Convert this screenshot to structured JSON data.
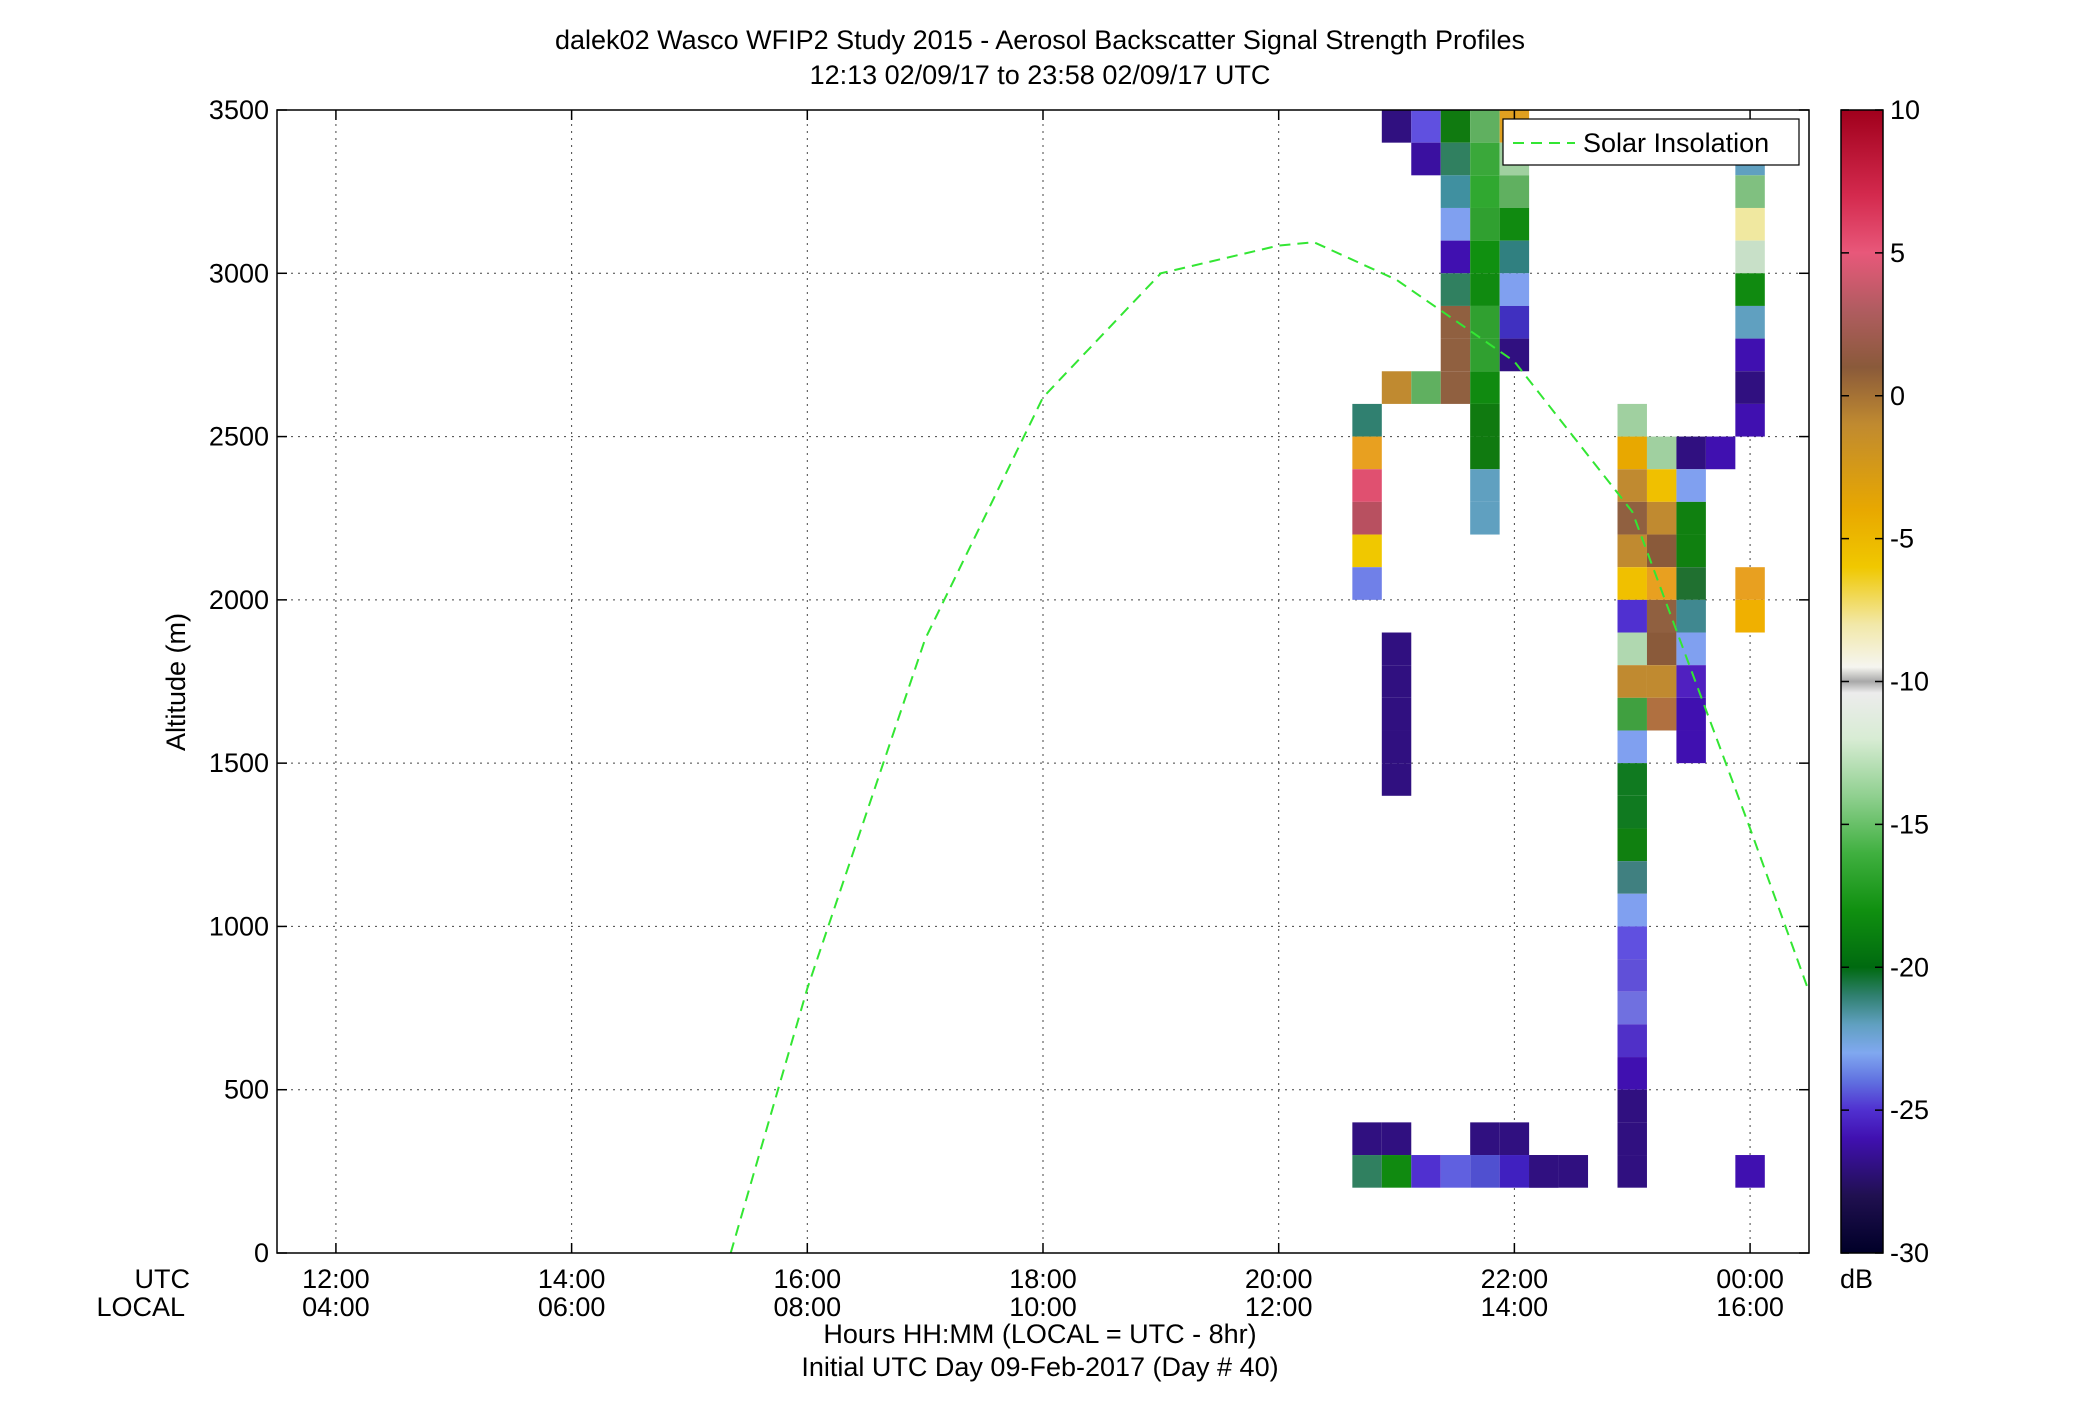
{
  "chart_data": {
    "type": "heatmap",
    "title": "dalek02 Wasco WFIP2 Study 2015 - Aerosol Backscatter Signal Strength Profiles",
    "subtitle": "12:13 02/09/17 to 23:58 02/09/17  UTC",
    "ylabel": "Altitude (m)",
    "xlabel": "Hours HH:MM  (LOCAL = UTC - 8hr)",
    "xlabel2": "Initial UTC Day 09-Feb-2017 (Day # 40)",
    "xaxis_row_labels": [
      "UTC",
      "LOCAL"
    ],
    "xlim_hours": [
      11.5,
      24.5
    ],
    "ylim": [
      0,
      3500
    ],
    "xticks": [
      {
        "hour": 12,
        "utc": "12:00",
        "local": "04:00"
      },
      {
        "hour": 14,
        "utc": "14:00",
        "local": "06:00"
      },
      {
        "hour": 16,
        "utc": "16:00",
        "local": "08:00"
      },
      {
        "hour": 18,
        "utc": "18:00",
        "local": "10:00"
      },
      {
        "hour": 20,
        "utc": "20:00",
        "local": "12:00"
      },
      {
        "hour": 22,
        "utc": "22:00",
        "local": "14:00"
      },
      {
        "hour": 24,
        "utc": "00:00",
        "local": "16:00"
      }
    ],
    "yticks": [
      0,
      500,
      1000,
      1500,
      2000,
      2500,
      3000,
      3500
    ],
    "grid": true,
    "legend": {
      "position": "top-right",
      "entries": [
        {
          "name": "Solar Insolation",
          "style": "dashed",
          "color": "#33e633"
        }
      ]
    },
    "colorbar": {
      "label": "dB",
      "min": -30,
      "max": 10,
      "ticks": [
        10,
        5,
        0,
        -5,
        -10,
        -15,
        -20,
        -25,
        -30
      ],
      "stops": [
        {
          "v": 10,
          "c": "#a0001c"
        },
        {
          "v": 7,
          "c": "#d42a4e"
        },
        {
          "v": 5,
          "c": "#e8587a"
        },
        {
          "v": 3,
          "c": "#b05c60"
        },
        {
          "v": 1,
          "c": "#8a5a3a"
        },
        {
          "v": -1,
          "c": "#c08a30"
        },
        {
          "v": -4,
          "c": "#e8a800"
        },
        {
          "v": -6,
          "c": "#f0c800"
        },
        {
          "v": -8,
          "c": "#f2e8a8"
        },
        {
          "v": -9.5,
          "c": "#f5f5f0"
        },
        {
          "v": -10,
          "c": "#a8a8a8"
        },
        {
          "v": -10.4,
          "c": "#ececec"
        },
        {
          "v": -12,
          "c": "#d8ecd4"
        },
        {
          "v": -14,
          "c": "#90d090"
        },
        {
          "v": -16,
          "c": "#40b040"
        },
        {
          "v": -18,
          "c": "#109010"
        },
        {
          "v": -20,
          "c": "#006a10"
        },
        {
          "v": -21,
          "c": "#308070"
        },
        {
          "v": -22,
          "c": "#60a0c0"
        },
        {
          "v": -23,
          "c": "#80a8f0"
        },
        {
          "v": -24,
          "c": "#6070e0"
        },
        {
          "v": -25,
          "c": "#5030d0"
        },
        {
          "v": -26,
          "c": "#4010b0"
        },
        {
          "v": -27,
          "c": "#301080"
        },
        {
          "v": -28,
          "c": "#201050"
        },
        {
          "v": -30,
          "c": "#000028"
        }
      ]
    },
    "solar_insolation_curve": [
      [
        15.35,
        0
      ],
      [
        16,
        810
      ],
      [
        17,
        1880
      ],
      [
        18,
        2620
      ],
      [
        19,
        3000
      ],
      [
        20,
        3085
      ],
      [
        20.3,
        3095
      ],
      [
        21,
        2980
      ],
      [
        22,
        2730
      ],
      [
        23,
        2270
      ],
      [
        24,
        1300
      ],
      [
        24.5,
        800
      ]
    ],
    "cell_size": {
      "hours": 0.25,
      "meters": 100
    },
    "cells": [
      [
        21.0,
        3450,
        "#301080"
      ],
      [
        21.25,
        3450,
        "#6050e0"
      ],
      [
        21.5,
        3450,
        "#107a10"
      ],
      [
        21.75,
        3450,
        "#60b060"
      ],
      [
        22.0,
        3450,
        "#e0a020"
      ],
      [
        21.25,
        3350,
        "#3a10a0"
      ],
      [
        21.5,
        3350,
        "#308060"
      ],
      [
        21.75,
        3350,
        "#3aa83a"
      ],
      [
        22.0,
        3350,
        "#a0d0a0"
      ],
      [
        21.5,
        3250,
        "#4090a0"
      ],
      [
        21.75,
        3250,
        "#30a830"
      ],
      [
        22.0,
        3250,
        "#60b060"
      ],
      [
        21.5,
        3150,
        "#80a0f0"
      ],
      [
        21.75,
        3150,
        "#30a030"
      ],
      [
        22.0,
        3150,
        "#108a10"
      ],
      [
        21.5,
        3050,
        "#4010b0"
      ],
      [
        21.75,
        3050,
        "#109010"
      ],
      [
        22.0,
        3050,
        "#308080"
      ],
      [
        21.5,
        2950,
        "#308060"
      ],
      [
        21.75,
        2950,
        "#108a10"
      ],
      [
        22.0,
        2950,
        "#80a0f0"
      ],
      [
        21.5,
        2850,
        "#906040"
      ],
      [
        21.75,
        2850,
        "#30a030"
      ],
      [
        22.0,
        2850,
        "#4030c0"
      ],
      [
        21.5,
        2750,
        "#906040"
      ],
      [
        21.75,
        2750,
        "#30a030"
      ],
      [
        22.0,
        2750,
        "#301080"
      ],
      [
        21.0,
        2650,
        "#c08a30"
      ],
      [
        21.25,
        2650,
        "#60b060"
      ],
      [
        21.5,
        2650,
        "#906040"
      ],
      [
        21.75,
        2650,
        "#108a10"
      ],
      [
        21.75,
        2550,
        "#107a10"
      ],
      [
        21.75,
        2450,
        "#107a10"
      ],
      [
        21.75,
        2350,
        "#60a0c0"
      ],
      [
        21.75,
        2250,
        "#60a0c0"
      ],
      [
        20.75,
        2550,
        "#308070"
      ],
      [
        20.75,
        2450,
        "#e8a020"
      ],
      [
        20.75,
        2350,
        "#e05070"
      ],
      [
        20.75,
        2250,
        "#b85060"
      ],
      [
        20.75,
        2150,
        "#f0c800"
      ],
      [
        20.75,
        2050,
        "#7080e8"
      ],
      [
        21.0,
        1850,
        "#301080"
      ],
      [
        21.0,
        1750,
        "#301080"
      ],
      [
        21.0,
        1650,
        "#301080"
      ],
      [
        21.0,
        1550,
        "#301080"
      ],
      [
        21.0,
        1450,
        "#301080"
      ],
      [
        20.75,
        350,
        "#301080"
      ],
      [
        21.0,
        350,
        "#301080"
      ],
      [
        21.75,
        350,
        "#301080"
      ],
      [
        22.0,
        350,
        "#301080"
      ],
      [
        20.75,
        250,
        "#308060"
      ],
      [
        21.0,
        250,
        "#108a10"
      ],
      [
        21.25,
        250,
        "#5030d0"
      ],
      [
        21.5,
        250,
        "#6060e0"
      ],
      [
        21.75,
        250,
        "#5050d0"
      ],
      [
        22.0,
        250,
        "#4020c0"
      ],
      [
        22.25,
        250,
        "#301080"
      ],
      [
        22.5,
        250,
        "#301080"
      ],
      [
        22.25,
        250,
        "#301080"
      ],
      [
        23.0,
        2550,
        "#a0d0a0"
      ],
      [
        23.0,
        2450,
        "#e8a800"
      ],
      [
        23.25,
        2450,
        "#a0d0a0"
      ],
      [
        23.5,
        2450,
        "#301080"
      ],
      [
        23.75,
        2450,
        "#4010b0"
      ],
      [
        23.0,
        2350,
        "#c08a30"
      ],
      [
        23.25,
        2350,
        "#f0c000"
      ],
      [
        23.5,
        2350,
        "#80a0f0"
      ],
      [
        23.0,
        2250,
        "#906040"
      ],
      [
        23.25,
        2250,
        "#c08a30"
      ],
      [
        23.5,
        2250,
        "#108010"
      ],
      [
        23.0,
        2150,
        "#c08a30"
      ],
      [
        23.25,
        2150,
        "#8a5a3a"
      ],
      [
        23.5,
        2150,
        "#108010"
      ],
      [
        23.0,
        2050,
        "#f0c000"
      ],
      [
        23.25,
        2050,
        "#e8a020"
      ],
      [
        23.5,
        2050,
        "#207030"
      ],
      [
        24.0,
        2050,
        "#e8a020"
      ],
      [
        23.0,
        1950,
        "#5030d0"
      ],
      [
        23.25,
        1950,
        "#906040"
      ],
      [
        23.5,
        1950,
        "#408890"
      ],
      [
        24.0,
        1950,
        "#f0b000"
      ],
      [
        23.0,
        1850,
        "#b0d8b0"
      ],
      [
        23.25,
        1850,
        "#8a5a3a"
      ],
      [
        23.5,
        1850,
        "#80a0f0"
      ],
      [
        23.0,
        1750,
        "#c08a30"
      ],
      [
        23.25,
        1750,
        "#c08a30"
      ],
      [
        23.5,
        1750,
        "#5020c0"
      ],
      [
        23.0,
        1650,
        "#40a040"
      ],
      [
        23.25,
        1650,
        "#b07040"
      ],
      [
        23.5,
        1650,
        "#4010b0"
      ],
      [
        23.0,
        1550,
        "#80a0f0"
      ],
      [
        23.5,
        1550,
        "#4010b0"
      ],
      [
        23.0,
        1450,
        "#107a20"
      ],
      [
        23.0,
        1350,
        "#107a20"
      ],
      [
        23.0,
        1250,
        "#108010"
      ],
      [
        23.0,
        1150,
        "#408080"
      ],
      [
        23.0,
        1050,
        "#80a0f0"
      ],
      [
        23.0,
        950,
        "#6050e0"
      ],
      [
        23.0,
        850,
        "#6050d8"
      ],
      [
        23.0,
        750,
        "#7070e0"
      ],
      [
        23.0,
        650,
        "#5030c8"
      ],
      [
        23.0,
        550,
        "#4010b0"
      ],
      [
        23.0,
        450,
        "#301080"
      ],
      [
        23.0,
        350,
        "#301080"
      ],
      [
        23.0,
        250,
        "#301080"
      ],
      [
        24.0,
        3350,
        "#60a0c0"
      ],
      [
        24.0,
        3250,
        "#80c080"
      ],
      [
        24.0,
        3150,
        "#f0e8a0"
      ],
      [
        24.0,
        3050,
        "#c8e0c8"
      ],
      [
        24.0,
        2950,
        "#108a10"
      ],
      [
        24.0,
        2850,
        "#60a0c0"
      ],
      [
        24.0,
        2750,
        "#4010b0"
      ],
      [
        24.0,
        2650,
        "#301080"
      ],
      [
        24.0,
        2550,
        "#4010b0"
      ],
      [
        24.0,
        250,
        "#4010b0"
      ]
    ]
  }
}
